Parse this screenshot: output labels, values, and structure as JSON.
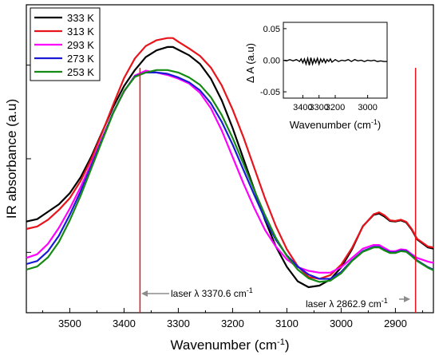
{
  "colors": {
    "333 K": "#000000",
    "313 K": "#e8141b",
    "293 K": "#ff00ff",
    "273 K": "#1a1ad6",
    "253 K": "#158a15",
    "laser_line": "#e8141b",
    "annotation_arrow": "#8c8c8c"
  },
  "chart_data": [
    {
      "type": "line",
      "xlabel": "Wavenumber (cm",
      "xlabel_sup": "-1",
      "xlabel_close": ")",
      "ylabel": "IR absorbance (a.u)",
      "x_reversed": true,
      "xlim": [
        3580,
        2830
      ],
      "ylim": [
        0,
        1
      ],
      "x_ticks": [
        3500,
        3400,
        3300,
        3200,
        3100,
        3000,
        2900
      ],
      "x_tick_labels": [
        "3500",
        "3400",
        "3300",
        "3200",
        "3100",
        "3000",
        "2900"
      ],
      "y_tick_values": [
        0.196,
        0.5,
        0.804
      ],
      "y_tick_labels_shown": false,
      "legend_position": "top-left",
      "series": [
        {
          "name": "333 K",
          "points": [
            [
              3580,
              0.296
            ],
            [
              3560,
              0.304
            ],
            [
              3540,
              0.328
            ],
            [
              3520,
              0.352
            ],
            [
              3500,
              0.388
            ],
            [
              3480,
              0.44
            ],
            [
              3460,
              0.508
            ],
            [
              3440,
              0.588
            ],
            [
              3420,
              0.668
            ],
            [
              3400,
              0.736
            ],
            [
              3380,
              0.788
            ],
            [
              3360,
              0.83
            ],
            [
              3340,
              0.852
            ],
            [
              3320,
              0.863
            ],
            [
              3310,
              0.863
            ],
            [
              3300,
              0.854
            ],
            [
              3280,
              0.836
            ],
            [
              3260,
              0.808
            ],
            [
              3240,
              0.76
            ],
            [
              3220,
              0.69
            ],
            [
              3200,
              0.6
            ],
            [
              3180,
              0.5
            ],
            [
              3160,
              0.4
            ],
            [
              3140,
              0.3
            ],
            [
              3120,
              0.214
            ],
            [
              3100,
              0.149
            ],
            [
              3080,
              0.102
            ],
            [
              3060,
              0.083
            ],
            [
              3040,
              0.088
            ],
            [
              3020,
              0.108
            ],
            [
              3000,
              0.147
            ],
            [
              2980,
              0.206
            ],
            [
              2960,
              0.281
            ],
            [
              2940,
              0.318
            ],
            [
              2930,
              0.322
            ],
            [
              2920,
              0.312
            ],
            [
              2910,
              0.298
            ],
            [
              2900,
              0.296
            ],
            [
              2890,
              0.3
            ],
            [
              2880,
              0.293
            ],
            [
              2870,
              0.27
            ],
            [
              2860,
              0.238
            ],
            [
              2840,
              0.212
            ],
            [
              2830,
              0.208
            ]
          ]
        },
        {
          "name": "313 K",
          "points": [
            [
              3580,
              0.272
            ],
            [
              3560,
              0.28
            ],
            [
              3540,
              0.302
            ],
            [
              3520,
              0.334
            ],
            [
              3500,
              0.372
            ],
            [
              3480,
              0.428
            ],
            [
              3460,
              0.5
            ],
            [
              3440,
              0.586
            ],
            [
              3420,
              0.676
            ],
            [
              3400,
              0.762
            ],
            [
              3380,
              0.826
            ],
            [
              3360,
              0.866
            ],
            [
              3340,
              0.885
            ],
            [
              3320,
              0.892
            ],
            [
              3310,
              0.892
            ],
            [
              3300,
              0.88
            ],
            [
              3280,
              0.858
            ],
            [
              3260,
              0.834
            ],
            [
              3240,
              0.796
            ],
            [
              3220,
              0.738
            ],
            [
              3200,
              0.66
            ],
            [
              3180,
              0.57
            ],
            [
              3160,
              0.47
            ],
            [
              3140,
              0.37
            ],
            [
              3120,
              0.28
            ],
            [
              3100,
              0.206
            ],
            [
              3080,
              0.151
            ],
            [
              3060,
              0.116
            ],
            [
              3040,
              0.11
            ],
            [
              3020,
              0.122
            ],
            [
              3000,
              0.156
            ],
            [
              2980,
              0.21
            ],
            [
              2960,
              0.28
            ],
            [
              2940,
              0.32
            ],
            [
              2930,
              0.326
            ],
            [
              2920,
              0.316
            ],
            [
              2910,
              0.3
            ],
            [
              2900,
              0.298
            ],
            [
              2890,
              0.302
            ],
            [
              2880,
              0.295
            ],
            [
              2870,
              0.272
            ],
            [
              2860,
              0.24
            ],
            [
              2840,
              0.215
            ],
            [
              2830,
              0.212
            ]
          ]
        },
        {
          "name": "293 K",
          "points": [
            [
              3580,
              0.178
            ],
            [
              3560,
              0.19
            ],
            [
              3540,
              0.224
            ],
            [
              3520,
              0.276
            ],
            [
              3500,
              0.338
            ],
            [
              3480,
              0.408
            ],
            [
              3460,
              0.486
            ],
            [
              3440,
              0.568
            ],
            [
              3420,
              0.65
            ],
            [
              3400,
              0.718
            ],
            [
              3380,
              0.77
            ],
            [
              3360,
              0.786
            ],
            [
              3340,
              0.78
            ],
            [
              3320,
              0.772
            ],
            [
              3300,
              0.76
            ],
            [
              3280,
              0.744
            ],
            [
              3260,
              0.714
            ],
            [
              3240,
              0.664
            ],
            [
              3220,
              0.592
            ],
            [
              3200,
              0.506
            ],
            [
              3180,
              0.42
            ],
            [
              3160,
              0.34
            ],
            [
              3140,
              0.268
            ],
            [
              3120,
              0.214
            ],
            [
              3100,
              0.173
            ],
            [
              3080,
              0.148
            ],
            [
              3060,
              0.136
            ],
            [
              3040,
              0.13
            ],
            [
              3020,
              0.13
            ],
            [
              3000,
              0.148
            ],
            [
              2980,
              0.178
            ],
            [
              2960,
              0.208
            ],
            [
              2940,
              0.22
            ],
            [
              2930,
              0.22
            ],
            [
              2920,
              0.21
            ],
            [
              2910,
              0.2
            ],
            [
              2900,
              0.2
            ],
            [
              2890,
              0.206
            ],
            [
              2880,
              0.204
            ],
            [
              2870,
              0.19
            ],
            [
              2860,
              0.178
            ],
            [
              2840,
              0.166
            ],
            [
              2830,
              0.162
            ]
          ]
        },
        {
          "name": "273 K",
          "points": [
            [
              3580,
              0.158
            ],
            [
              3560,
              0.168
            ],
            [
              3540,
              0.2
            ],
            [
              3520,
              0.25
            ],
            [
              3500,
              0.318
            ],
            [
              3480,
              0.394
            ],
            [
              3460,
              0.478
            ],
            [
              3440,
              0.564
            ],
            [
              3420,
              0.65
            ],
            [
              3400,
              0.72
            ],
            [
              3380,
              0.768
            ],
            [
              3360,
              0.78
            ],
            [
              3340,
              0.78
            ],
            [
              3320,
              0.776
            ],
            [
              3300,
              0.764
            ],
            [
              3280,
              0.748
            ],
            [
              3260,
              0.722
            ],
            [
              3240,
              0.68
            ],
            [
              3220,
              0.62
            ],
            [
              3200,
              0.546
            ],
            [
              3180,
              0.464
            ],
            [
              3160,
              0.382
            ],
            [
              3140,
              0.304
            ],
            [
              3120,
              0.236
            ],
            [
              3100,
              0.186
            ],
            [
              3080,
              0.15
            ],
            [
              3060,
              0.124
            ],
            [
              3040,
              0.11
            ],
            [
              3020,
              0.11
            ],
            [
              3000,
              0.132
            ],
            [
              2980,
              0.17
            ],
            [
              2960,
              0.2
            ],
            [
              2940,
              0.214
            ],
            [
              2930,
              0.214
            ],
            [
              2920,
              0.204
            ],
            [
              2910,
              0.196
            ],
            [
              2900,
              0.196
            ],
            [
              2890,
              0.202
            ],
            [
              2880,
              0.2
            ],
            [
              2870,
              0.186
            ],
            [
              2860,
              0.17
            ],
            [
              2840,
              0.148
            ],
            [
              2830,
              0.14
            ]
          ]
        },
        {
          "name": "253 K",
          "points": [
            [
              3580,
              0.14
            ],
            [
              3560,
              0.15
            ],
            [
              3540,
              0.18
            ],
            [
              3520,
              0.23
            ],
            [
              3500,
              0.3
            ],
            [
              3480,
              0.38
            ],
            [
              3460,
              0.47
            ],
            [
              3440,
              0.56
            ],
            [
              3420,
              0.648
            ],
            [
              3400,
              0.72
            ],
            [
              3380,
              0.766
            ],
            [
              3360,
              0.78
            ],
            [
              3340,
              0.788
            ],
            [
              3320,
              0.788
            ],
            [
              3300,
              0.78
            ],
            [
              3280,
              0.764
            ],
            [
              3260,
              0.74
            ],
            [
              3240,
              0.7
            ],
            [
              3220,
              0.642
            ],
            [
              3200,
              0.568
            ],
            [
              3180,
              0.484
            ],
            [
              3160,
              0.398
            ],
            [
              3140,
              0.316
            ],
            [
              3120,
              0.242
            ],
            [
              3100,
              0.184
            ],
            [
              3080,
              0.14
            ],
            [
              3060,
              0.112
            ],
            [
              3040,
              0.1
            ],
            [
              3020,
              0.104
            ],
            [
              3000,
              0.128
            ],
            [
              2980,
              0.168
            ],
            [
              2960,
              0.198
            ],
            [
              2940,
              0.212
            ],
            [
              2930,
              0.212
            ],
            [
              2920,
              0.202
            ],
            [
              2910,
              0.194
            ],
            [
              2900,
              0.194
            ],
            [
              2890,
              0.2
            ],
            [
              2880,
              0.198
            ],
            [
              2870,
              0.184
            ],
            [
              2860,
              0.168
            ],
            [
              2840,
              0.146
            ],
            [
              2830,
              0.138
            ]
          ]
        }
      ],
      "vertical_lines": [
        3370.6,
        2862.9
      ],
      "annotations": [
        {
          "text": "laser λ  3370.6 cm",
          "sup": "-1",
          "x": 3370.6,
          "y": 0.068,
          "arrow_to": 3370.6,
          "side": "right"
        },
        {
          "text": "laser λ  2862.9 cm",
          "sup": "-1",
          "x": 2862.9,
          "y": 0.036,
          "arrow_to": 2862.9,
          "side": "left"
        }
      ]
    },
    {
      "type": "line",
      "xlabel": "Wavenumber (cm",
      "xlabel_sup": "-1",
      "xlabel_close": ")",
      "ylabel": "Δ A (a.u)",
      "x_reversed": true,
      "xlim": [
        3520,
        2880
      ],
      "ylim": [
        -0.06,
        0.06
      ],
      "x_ticks": [
        3400,
        3300,
        3200,
        3000
      ],
      "x_tick_labels": [
        "3400",
        "3300",
        "3200",
        "3000"
      ],
      "y_ticks": [
        0.05,
        0.0,
        -0.05
      ],
      "y_tick_labels": [
        "0.05",
        "0.00",
        "-0.05"
      ],
      "series": [
        {
          "name": "",
          "x": [
            3520,
            3500,
            3480,
            3460,
            3440,
            3420,
            3410,
            3400,
            3390,
            3380,
            3370,
            3360,
            3350,
            3340,
            3330,
            3320,
            3310,
            3300,
            3290,
            3280,
            3270,
            3260,
            3250,
            3240,
            3230,
            3220,
            3200,
            3180,
            3160,
            3140,
            3120,
            3100,
            3080,
            3060,
            3040,
            3020,
            3000,
            2980,
            2960,
            2940,
            2920,
            2900,
            2880
          ],
          "y": [
            0.0,
            -0.001,
            0.001,
            -0.001,
            0.001,
            -0.002,
            0.002,
            -0.004,
            0.002,
            -0.006,
            0.003,
            -0.008,
            0.004,
            -0.006,
            0.002,
            -0.004,
            0.003,
            -0.006,
            0.002,
            -0.003,
            0.002,
            -0.004,
            0.001,
            -0.002,
            0.002,
            -0.003,
            0.001,
            -0.002,
            0.0,
            -0.001,
            0.001,
            -0.002,
            0.001,
            -0.001,
            0.0,
            -0.002,
            0.0,
            -0.001,
            0.0,
            -0.002,
            -0.001,
            -0.002,
            -0.002
          ]
        }
      ]
    }
  ]
}
